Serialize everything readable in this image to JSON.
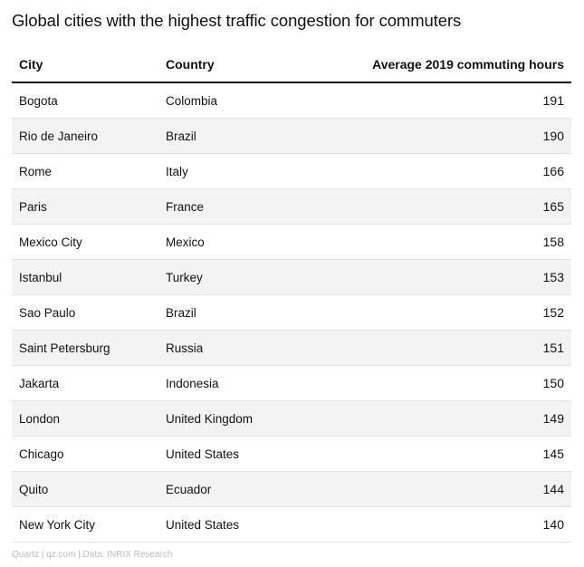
{
  "title": "Global cities with the highest traffic congestion for commuters",
  "footer": "Quartz | qz.com | Data: INRIX Research",
  "chart_data": {
    "type": "table",
    "title": "Global cities with the highest traffic congestion for commuters",
    "columns": [
      "City",
      "Country",
      "Average 2019 commuting hours"
    ],
    "rows": [
      {
        "city": "Bogota",
        "country": "Colombia",
        "hours": "191"
      },
      {
        "city": "Rio de Janeiro",
        "country": "Brazil",
        "hours": "190"
      },
      {
        "city": "Rome",
        "country": "Italy",
        "hours": "166"
      },
      {
        "city": "Paris",
        "country": "France",
        "hours": "165"
      },
      {
        "city": "Mexico City",
        "country": "Mexico",
        "hours": "158"
      },
      {
        "city": "Istanbul",
        "country": "Turkey",
        "hours": "153"
      },
      {
        "city": "Sao Paulo",
        "country": "Brazil",
        "hours": "152"
      },
      {
        "city": "Saint Petersburg",
        "country": "Russia",
        "hours": "151"
      },
      {
        "city": "Jakarta",
        "country": "Indonesia",
        "hours": "150"
      },
      {
        "city": "London",
        "country": "United Kingdom",
        "hours": "149"
      },
      {
        "city": "Chicago",
        "country": "United States",
        "hours": "145"
      },
      {
        "city": "Quito",
        "country": "Ecuador",
        "hours": "144"
      },
      {
        "city": "New York City",
        "country": "United States",
        "hours": "140"
      }
    ]
  }
}
